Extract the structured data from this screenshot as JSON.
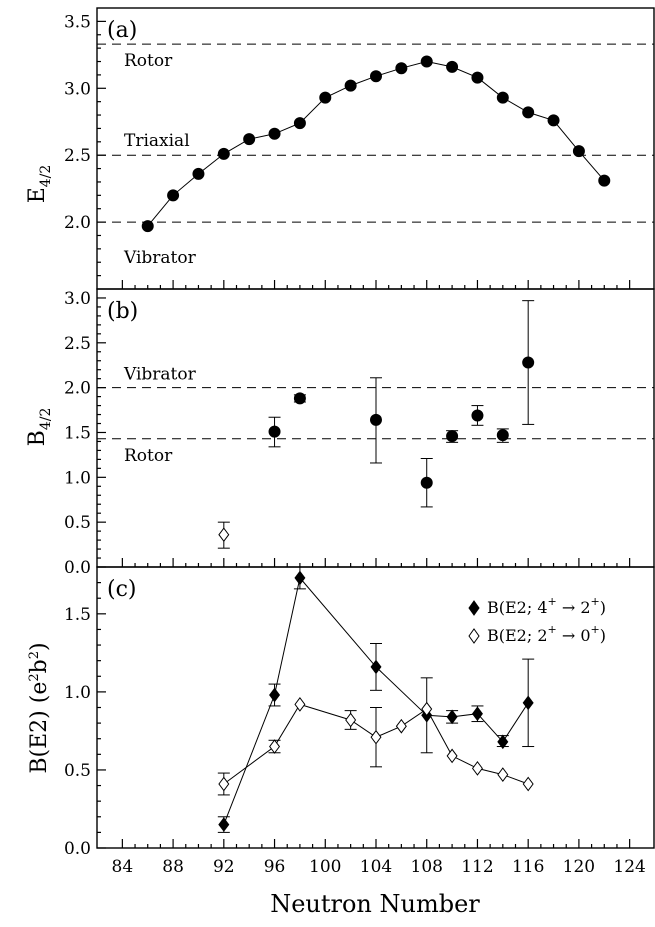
{
  "x_axis": {
    "title": "Neutron Number",
    "range": [
      82,
      126
    ],
    "ticks": [
      84,
      88,
      92,
      96,
      100,
      104,
      108,
      112,
      116,
      120,
      124
    ]
  },
  "chart_data": [
    {
      "type": "line",
      "panel": "(a)",
      "ylabel_main": "E",
      "ylabel_sub": "4/2",
      "ylim": [
        1.5,
        3.6
      ],
      "yticks": [
        "2.0",
        "2.5",
        "3.0",
        "3.5"
      ],
      "reference_lines": [
        {
          "label": "Rotor",
          "y": 3.33
        },
        {
          "label": "Triaxial",
          "y": 2.5
        },
        {
          "label": "Vibrator",
          "y": 2.0
        }
      ],
      "series": [
        {
          "marker": "filled-circle",
          "x": [
            86,
            88,
            90,
            92,
            94,
            96,
            98,
            100,
            102,
            104,
            106,
            108,
            110,
            112,
            114,
            116,
            118,
            120,
            122
          ],
          "y": [
            1.97,
            2.2,
            2.36,
            2.51,
            2.62,
            2.66,
            2.74,
            2.93,
            3.02,
            3.09,
            3.15,
            3.2,
            3.16,
            3.08,
            2.93,
            2.82,
            2.76,
            2.53,
            2.31
          ]
        }
      ]
    },
    {
      "type": "scatter",
      "panel": "(b)",
      "ylabel_main": "B",
      "ylabel_sub": "4/2",
      "ylim": [
        0.0,
        3.1
      ],
      "yticks": [
        "0.0",
        "0.5",
        "1.0",
        "1.5",
        "2.0",
        "2.5",
        "3.0"
      ],
      "reference_lines": [
        {
          "label": "Vibrator",
          "y": 2.0
        },
        {
          "label": "Rotor",
          "y": 1.43
        }
      ],
      "series": [
        {
          "marker": "filled-circle",
          "points": [
            {
              "x": 96,
              "y": 1.51,
              "lo": 1.34,
              "hi": 1.67
            },
            {
              "x": 98,
              "y": 1.88,
              "lo": 1.84,
              "hi": 1.92
            },
            {
              "x": 104,
              "y": 1.64,
              "lo": 1.16,
              "hi": 2.11
            },
            {
              "x": 108,
              "y": 0.94,
              "lo": 0.67,
              "hi": 1.21
            },
            {
              "x": 110,
              "y": 1.46,
              "lo": 1.39,
              "hi": 1.52
            },
            {
              "x": 112,
              "y": 1.69,
              "lo": 1.58,
              "hi": 1.8
            },
            {
              "x": 114,
              "y": 1.47,
              "lo": 1.39,
              "hi": 1.54
            },
            {
              "x": 116,
              "y": 2.28,
              "lo": 1.59,
              "hi": 2.97
            }
          ]
        },
        {
          "marker": "open-diamond",
          "points": [
            {
              "x": 92,
              "y": 0.36,
              "lo": 0.21,
              "hi": 0.5
            }
          ]
        }
      ]
    },
    {
      "type": "line",
      "panel": "(c)",
      "ylabel": "B(E2) (e2b2)",
      "ylim": [
        0.0,
        1.8
      ],
      "yticks": [
        "0.0",
        "0.5",
        "1.0",
        "1.5"
      ],
      "legend_position": "top-right",
      "series": [
        {
          "name": "B(E2; 4+ → 2+)",
          "legend_parts": [
            "B(E2; 4",
            "+",
            " → 2",
            "+",
            ")"
          ],
          "marker": "filled-diamond",
          "points": [
            {
              "x": 92,
              "y": 0.15,
              "lo": 0.1,
              "hi": 0.2
            },
            {
              "x": 96,
              "y": 0.98,
              "lo": 0.91,
              "hi": 1.05
            },
            {
              "x": 98,
              "y": 1.73,
              "lo": 1.66,
              "hi": 1.8
            },
            {
              "x": 104,
              "y": 1.16,
              "lo": 1.01,
              "hi": 1.31
            },
            {
              "x": 108,
              "y": 0.85,
              "lo": 0.61,
              "hi": 1.09
            },
            {
              "x": 110,
              "y": 0.84,
              "lo": 0.8,
              "hi": 0.88
            },
            {
              "x": 112,
              "y": 0.86,
              "lo": 0.81,
              "hi": 0.91
            },
            {
              "x": 114,
              "y": 0.68,
              "lo": 0.65,
              "hi": 0.72
            },
            {
              "x": 116,
              "y": 0.93,
              "lo": 0.65,
              "hi": 1.21
            }
          ]
        },
        {
          "name": "B(E2; 2+ → 0+)",
          "legend_parts": [
            "B(E2; 2",
            "+",
            " → 0",
            "+",
            ")"
          ],
          "marker": "open-diamond",
          "points": [
            {
              "x": 92,
              "y": 0.41,
              "lo": 0.34,
              "hi": 0.48
            },
            {
              "x": 96,
              "y": 0.65,
              "lo": 0.61,
              "hi": 0.69
            },
            {
              "x": 98,
              "y": 0.92,
              "lo": null,
              "hi": null
            },
            {
              "x": 102,
              "y": 0.82,
              "lo": 0.76,
              "hi": 0.88
            },
            {
              "x": 104,
              "y": 0.71,
              "lo": 0.52,
              "hi": 0.9
            },
            {
              "x": 106,
              "y": 0.78,
              "lo": null,
              "hi": null
            },
            {
              "x": 108,
              "y": 0.89,
              "lo": null,
              "hi": null
            },
            {
              "x": 110,
              "y": 0.59,
              "lo": null,
              "hi": null
            },
            {
              "x": 112,
              "y": 0.51,
              "lo": null,
              "hi": null
            },
            {
              "x": 114,
              "y": 0.47,
              "lo": null,
              "hi": null
            },
            {
              "x": 116,
              "y": 0.41,
              "lo": null,
              "hi": null
            }
          ]
        }
      ]
    }
  ]
}
